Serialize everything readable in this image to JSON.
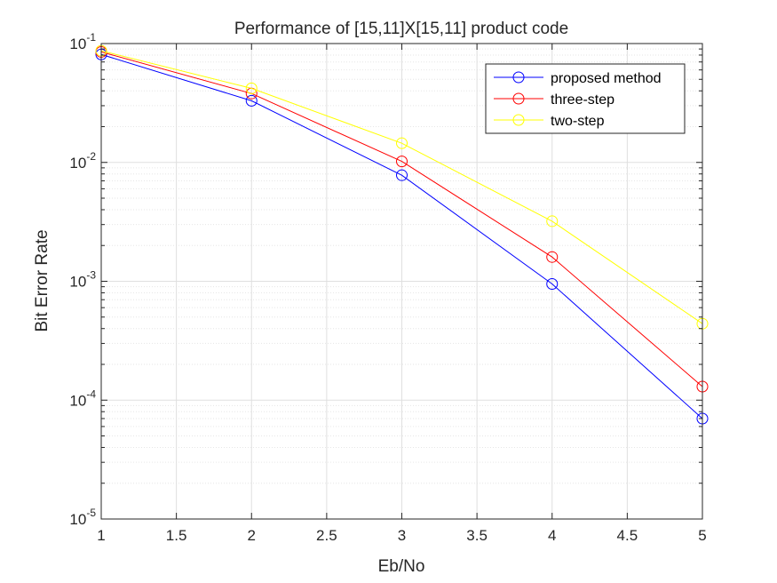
{
  "chart_data": {
    "type": "line",
    "title": "Performance of [15,11]X[15,11] product code",
    "xlabel": "Eb/No",
    "ylabel": "Bit Error Rate",
    "xlim": [
      1,
      5
    ],
    "ylim": [
      1e-05,
      0.1
    ],
    "yscale": "log",
    "grid": true,
    "minor_grid": true,
    "legend_position": "top-right",
    "x_ticks": [
      1,
      1.5,
      2,
      2.5,
      3,
      3.5,
      4,
      4.5,
      5
    ],
    "x_tick_labels": [
      "1",
      "1.5",
      "2",
      "2.5",
      "3",
      "3.5",
      "4",
      "4.5",
      "5"
    ],
    "y_ticks": [
      {
        "value": 0.1,
        "base": "10",
        "exp": "-1"
      },
      {
        "value": 0.01,
        "base": "10",
        "exp": "-2"
      },
      {
        "value": 0.001,
        "base": "10",
        "exp": "-3"
      },
      {
        "value": 0.0001,
        "base": "10",
        "exp": "-4"
      },
      {
        "value": 1e-05,
        "base": "10",
        "exp": "-5"
      }
    ],
    "x": [
      1,
      2,
      3,
      4,
      5
    ],
    "series": [
      {
        "name": "proposed method",
        "color": "#0000ff",
        "marker": "circle",
        "values": [
          0.081,
          0.033,
          0.0078,
          0.00095,
          7e-05
        ]
      },
      {
        "name": "three-step",
        "color": "#ff0000",
        "marker": "circle",
        "values": [
          0.085,
          0.038,
          0.0102,
          0.0016,
          0.00013
        ]
      },
      {
        "name": "two-step",
        "color": "#ffff00",
        "marker": "circle",
        "values": [
          0.087,
          0.042,
          0.0145,
          0.0032,
          0.00044
        ]
      }
    ]
  }
}
